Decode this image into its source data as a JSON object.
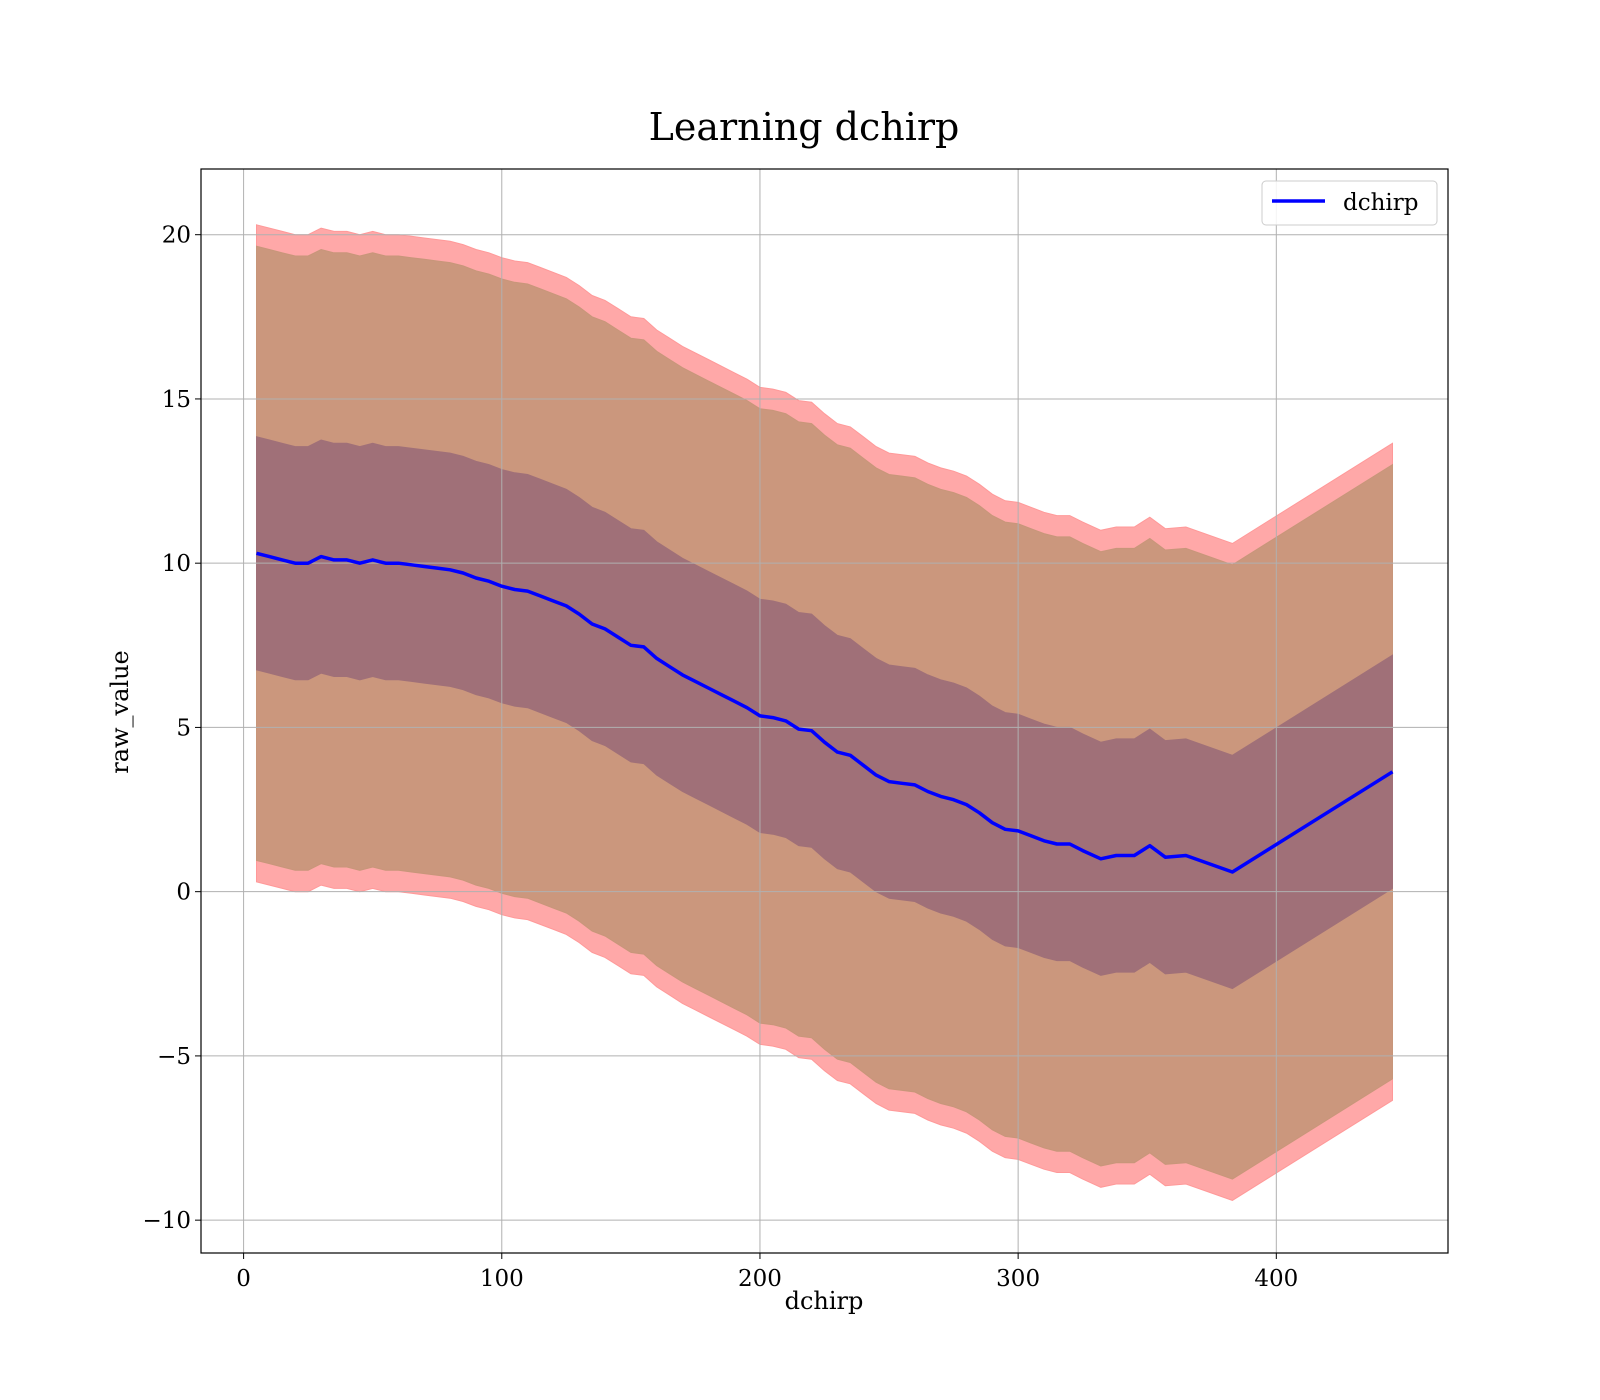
{
  "chart_data": {
    "type": "line",
    "title": "Learning dchirp",
    "xlabel": "dchirp",
    "ylabel": "raw_value",
    "xlim": [
      -16.5,
      466.5
    ],
    "ylim": [
      -11,
      22
    ],
    "xticks": [
      0,
      100,
      200,
      300,
      400
    ],
    "yticks": [
      -10,
      -5,
      0,
      5,
      10,
      15,
      20
    ],
    "xtick_labels": [
      "0",
      "100",
      "200",
      "300",
      "400"
    ],
    "ytick_labels": [
      "−10",
      "−5",
      "0",
      "5",
      "10",
      "15",
      "20"
    ],
    "grid": true,
    "legend": {
      "position": "top-right",
      "entries": [
        "dchirp"
      ]
    },
    "colors": {
      "mean_line": "#0000ff",
      "band_outer": "#ff9999",
      "band_mid": "#c8967a",
      "band_inner": "#a07078",
      "grid": "#b0b0b0"
    },
    "series": [
      {
        "name": "dchirp",
        "x": [
          5,
          10,
          15,
          20,
          25,
          30,
          35,
          40,
          45,
          50,
          55,
          60,
          65,
          70,
          75,
          80,
          85,
          90,
          95,
          100,
          105,
          110,
          115,
          120,
          125,
          130,
          135,
          140,
          145,
          150,
          155,
          160,
          165,
          170,
          175,
          180,
          185,
          190,
          195,
          200,
          205,
          210,
          215,
          220,
          225,
          230,
          235,
          240,
          245,
          250,
          255,
          260,
          265,
          270,
          275,
          280,
          285,
          290,
          295,
          300,
          305,
          310,
          315,
          320,
          325,
          332,
          338,
          345,
          351,
          357,
          365,
          383,
          445
        ],
        "y": [
          10.3,
          10.2,
          10.1,
          10.0,
          10.0,
          10.2,
          10.1,
          10.1,
          10.0,
          10.1,
          10.0,
          10.0,
          9.95,
          9.9,
          9.85,
          9.8,
          9.7,
          9.55,
          9.45,
          9.3,
          9.2,
          9.15,
          9.0,
          8.85,
          8.7,
          8.45,
          8.15,
          8.0,
          7.75,
          7.5,
          7.45,
          7.1,
          6.85,
          6.6,
          6.4,
          6.2,
          6.0,
          5.8,
          5.6,
          5.35,
          5.3,
          5.2,
          4.95,
          4.9,
          4.55,
          4.25,
          4.15,
          3.85,
          3.55,
          3.35,
          3.3,
          3.25,
          3.05,
          2.9,
          2.8,
          2.65,
          2.4,
          2.1,
          1.9,
          1.85,
          1.7,
          1.55,
          1.45,
          1.45,
          1.25,
          1.0,
          1.1,
          1.1,
          1.4,
          1.05,
          1.1,
          0.6,
          3.65
        ]
      }
    ],
    "bands": [
      {
        "role": "outer",
        "sigma": 3.0,
        "sigma_offset": 0.1
      },
      {
        "role": "mid",
        "sigma": 3.0,
        "sigma_offset": -0.55
      },
      {
        "role": "inner",
        "sigma": 1.0,
        "sigma_offset": 0.25
      }
    ],
    "band_sigma": 3.3
  }
}
